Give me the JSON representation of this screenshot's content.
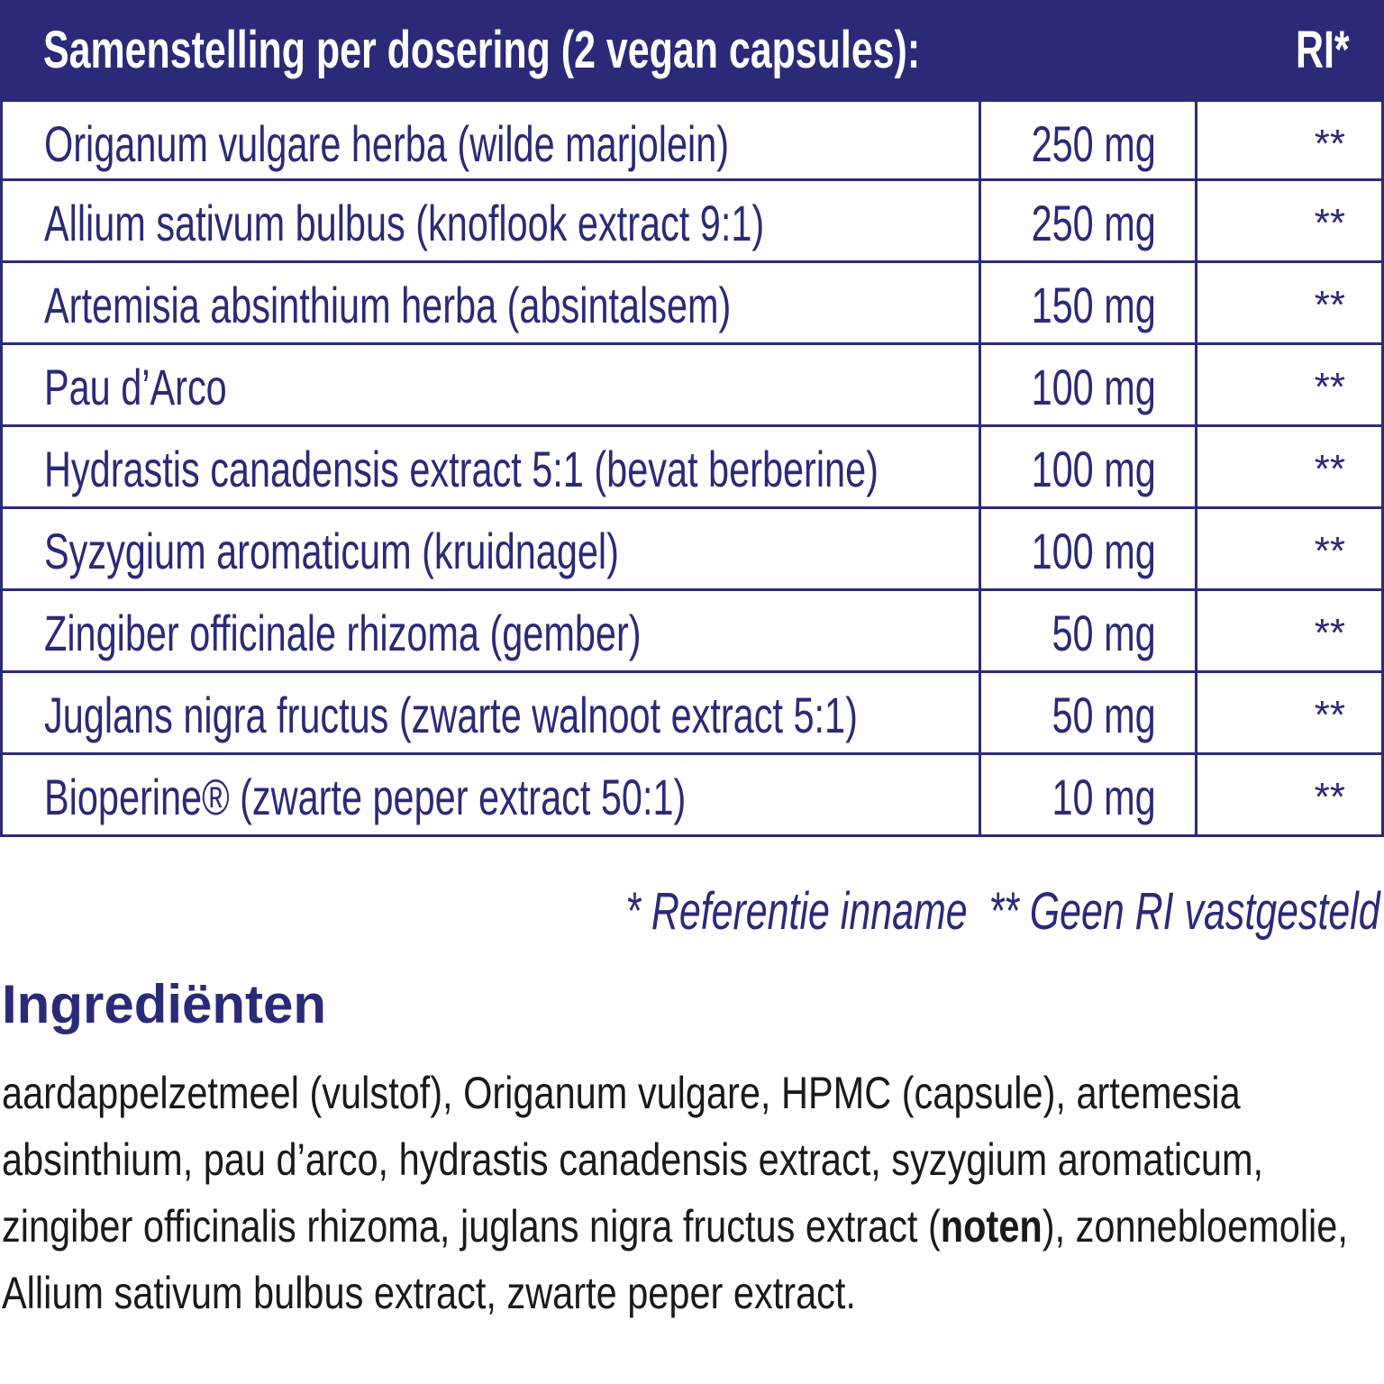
{
  "table": {
    "header": {
      "title": "Samenstelling per dosering (2 vegan capsules):",
      "ri": "RI*"
    },
    "rows": [
      [
        "Origanum vulgare herba (wilde marjolein)",
        "250 mg",
        "**"
      ],
      [
        "Allium sativum bulbus (knoflook extract 9:1)",
        "250 mg",
        "**"
      ],
      [
        "Artemisia absinthium herba (absintalsem)",
        "150 mg",
        "**"
      ],
      [
        "Pau d’Arco",
        "100 mg",
        "**"
      ],
      [
        "Hydrastis canadensis extract 5:1 (bevat berberine)",
        "100 mg",
        "**"
      ],
      [
        "Syzygium aromaticum (kruidnagel)",
        "100 mg",
        "**"
      ],
      [
        "Zingiber officinale rhizoma (gember)",
        "50 mg",
        "**"
      ],
      [
        "Juglans nigra fructus (zwarte walnoot extract 5:1)",
        "50 mg",
        "**"
      ],
      [
        "Bioperine® (zwarte peper extract 50:1)",
        "10 mg",
        "**"
      ]
    ]
  },
  "footnote": {
    "ri": "* Referentie inname",
    "none": "** Geen RI vastgesteld"
  },
  "ingredients": {
    "title": "Ingrediënten",
    "before": "aardappelzetmeel (vulstof), Origanum vulgare, HPMC (capsule), artemesia absinthium, pau d’arco, hydrastis canadensis extract, syzygium aromaticum, zingiber officinalis rhizoma, juglans nigra fructus extract (",
    "bold": "noten",
    "after": "), zonnebloemolie, Allium sativum bulbus extract, zwarte peper extract."
  }
}
